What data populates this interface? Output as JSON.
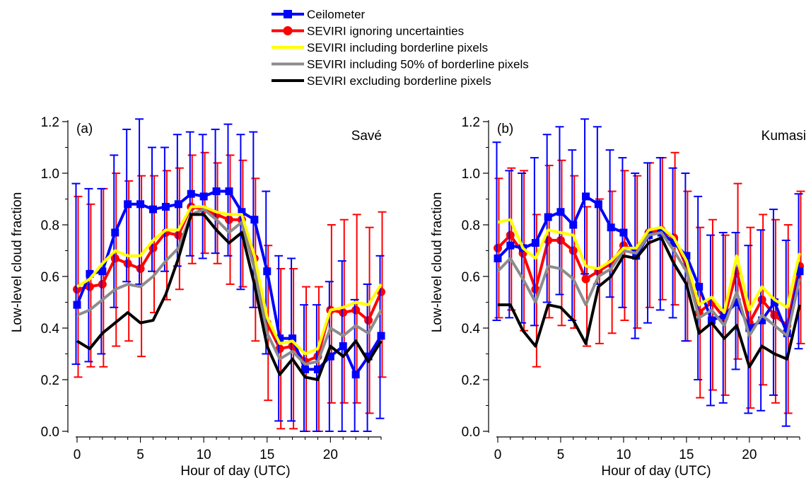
{
  "legend": {
    "placement": "top-center",
    "entries": [
      {
        "label": "Ceilometer",
        "color": "#0000ff",
        "marker": "square"
      },
      {
        "label": "SEVIRI ignoring uncertainties",
        "color": "#ff0000",
        "marker": "circle"
      },
      {
        "label": "SEVIRI including borderline pixels",
        "color": "#ffff00",
        "marker": "none"
      },
      {
        "label": "SEVIRI including 50% of borderline pixels",
        "color": "#8c8c8c",
        "marker": "none"
      },
      {
        "label": "SEVIRI excluding borderline pixels",
        "color": "#000000",
        "marker": "none"
      }
    ]
  },
  "chart_data": [
    {
      "type": "line",
      "panel_label": "(a)",
      "site": "Savé",
      "xlabel": "Hour of day (UTC)",
      "ylabel": "Low-level cloud fraction",
      "xlim": [
        -0.5,
        24
      ],
      "ylim": [
        -0.02,
        1.22
      ],
      "xticks": [
        "0",
        "5",
        "10",
        "15",
        "20"
      ],
      "yticks": [
        "0.0",
        "0.2",
        "0.4",
        "0.6",
        "0.8",
        "1.0",
        "1.2"
      ],
      "grid": false,
      "x": [
        0,
        1,
        2,
        3,
        4,
        5,
        6,
        7,
        8,
        9,
        10,
        11,
        12,
        13,
        14,
        15,
        16,
        17,
        18,
        19,
        20,
        21,
        22,
        23,
        24
      ],
      "series": [
        {
          "name": "Ceilometer",
          "values": [
            0.49,
            0.61,
            0.62,
            0.77,
            0.88,
            0.88,
            0.86,
            0.87,
            0.88,
            0.92,
            0.91,
            0.93,
            0.93,
            0.85,
            0.82,
            0.62,
            0.36,
            0.36,
            0.24,
            0.24,
            0.29,
            0.33,
            0.22,
            0.29,
            0.37
          ],
          "err_low": [
            0.26,
            0.27,
            0.3,
            0.48,
            0.58,
            0.57,
            0.62,
            0.62,
            0.64,
            0.68,
            0.67,
            0.69,
            0.68,
            0.55,
            0.48,
            0.3,
            0.04,
            0.04,
            0.0,
            0.0,
            0.0,
            0.0,
            0.0,
            0.0,
            0.05
          ],
          "err_high": [
            0.96,
            0.94,
            0.94,
            1.07,
            1.17,
            1.21,
            1.1,
            1.1,
            1.15,
            1.16,
            1.15,
            1.17,
            1.19,
            1.15,
            1.16,
            0.93,
            0.68,
            0.67,
            0.49,
            0.49,
            0.58,
            0.66,
            0.51,
            0.57,
            0.68
          ]
        },
        {
          "name": "SEVIRI ignoring uncertainties",
          "values": [
            0.55,
            0.56,
            0.57,
            0.67,
            0.65,
            0.63,
            0.71,
            0.77,
            0.76,
            0.87,
            0.86,
            0.84,
            0.82,
            0.82,
            0.67,
            0.42,
            0.32,
            0.33,
            0.27,
            0.29,
            0.47,
            0.46,
            0.47,
            0.43,
            0.54
          ],
          "err_low": [
            0.21,
            0.25,
            0.25,
            0.33,
            0.35,
            0.29,
            0.46,
            0.51,
            0.55,
            0.65,
            0.69,
            0.65,
            0.57,
            0.56,
            0.35,
            0.12,
            0.01,
            0.01,
            0.0,
            0.0,
            0.11,
            0.11,
            0.11,
            0.07,
            0.21
          ],
          "err_high": [
            0.91,
            0.88,
            0.94,
            1.0,
            0.97,
            0.99,
            0.99,
            1.01,
            1.02,
            1.07,
            1.08,
            1.04,
            1.07,
            1.05,
            0.98,
            0.72,
            0.63,
            0.63,
            0.56,
            0.56,
            0.8,
            0.82,
            0.84,
            0.79,
            0.85
          ]
        },
        {
          "name": "SEVIRI including borderline pixels",
          "values": [
            0.56,
            0.59,
            0.65,
            0.7,
            0.68,
            0.68,
            0.74,
            0.78,
            0.78,
            0.87,
            0.87,
            0.85,
            0.84,
            0.84,
            0.68,
            0.44,
            0.34,
            0.35,
            0.3,
            0.32,
            0.47,
            0.48,
            0.5,
            0.49,
            0.57
          ]
        },
        {
          "name": "SEVIRI including 50% of borderline pixels",
          "values": [
            0.45,
            0.47,
            0.51,
            0.55,
            0.57,
            0.56,
            0.6,
            0.66,
            0.71,
            0.84,
            0.86,
            0.82,
            0.77,
            0.81,
            0.63,
            0.38,
            0.28,
            0.31,
            0.26,
            0.27,
            0.4,
            0.37,
            0.41,
            0.38,
            0.47
          ]
        },
        {
          "name": "SEVIRI excluding borderline pixels",
          "values": [
            0.35,
            0.32,
            0.38,
            0.42,
            0.46,
            0.42,
            0.43,
            0.53,
            0.67,
            0.84,
            0.84,
            0.78,
            0.73,
            0.77,
            0.57,
            0.33,
            0.22,
            0.28,
            0.21,
            0.2,
            0.33,
            0.29,
            0.35,
            0.27,
            0.35
          ]
        }
      ]
    },
    {
      "type": "line",
      "panel_label": "(b)",
      "site": "Kumasi",
      "xlabel": "Hour of day (UTC)",
      "ylabel": "Low-level cloud fraction",
      "xlim": [
        -0.5,
        24
      ],
      "ylim": [
        -0.02,
        1.22
      ],
      "xticks": [
        "0",
        "5",
        "10",
        "15",
        "20"
      ],
      "yticks": [
        "0.0",
        "0.2",
        "0.4",
        "0.6",
        "0.8",
        "1.0",
        "1.2"
      ],
      "grid": false,
      "x": [
        0,
        1,
        2,
        3,
        4,
        5,
        6,
        7,
        8,
        9,
        10,
        11,
        12,
        13,
        14,
        15,
        16,
        17,
        18,
        19,
        20,
        21,
        22,
        23,
        24
      ],
      "series": [
        {
          "name": "Ceilometer",
          "values": [
            0.67,
            0.72,
            0.71,
            0.73,
            0.83,
            0.85,
            0.8,
            0.91,
            0.88,
            0.79,
            0.77,
            0.68,
            0.76,
            0.77,
            0.73,
            0.68,
            0.56,
            0.43,
            0.45,
            0.5,
            0.4,
            0.43,
            0.5,
            0.38,
            0.62
          ],
          "err_low": [
            0.43,
            0.44,
            0.42,
            0.41,
            0.5,
            0.53,
            0.43,
            0.61,
            0.57,
            0.52,
            0.48,
            0.36,
            0.42,
            0.47,
            0.44,
            0.35,
            0.2,
            0.1,
            0.11,
            0.24,
            0.07,
            0.08,
            0.14,
            0.02,
            0.32
          ],
          "err_high": [
            1.12,
            1.01,
            1.0,
            1.06,
            1.15,
            1.18,
            1.09,
            1.21,
            1.18,
            1.09,
            1.06,
            1.0,
            1.04,
            1.06,
            1.02,
            1.0,
            0.91,
            0.76,
            0.77,
            0.77,
            0.72,
            0.78,
            0.86,
            0.74,
            0.92
          ]
        },
        {
          "name": "SEVIRI ignoring uncertainties",
          "values": [
            0.71,
            0.76,
            0.69,
            0.55,
            0.74,
            0.74,
            0.7,
            0.59,
            0.62,
            0.65,
            0.72,
            0.7,
            0.77,
            0.78,
            0.75,
            0.64,
            0.46,
            0.5,
            0.44,
            0.62,
            0.42,
            0.51,
            0.45,
            0.41,
            0.64
          ],
          "err_low": [
            0.44,
            0.47,
            0.39,
            0.25,
            0.44,
            0.41,
            0.4,
            0.33,
            0.34,
            0.38,
            0.43,
            0.4,
            0.48,
            0.51,
            0.49,
            0.35,
            0.13,
            0.16,
            0.14,
            0.28,
            0.09,
            0.18,
            0.11,
            0.07,
            0.34
          ],
          "err_high": [
            0.98,
            1.02,
            1.01,
            0.84,
            1.03,
            1.05,
            0.99,
            0.87,
            0.9,
            0.93,
            1.01,
            0.99,
            1.04,
            1.06,
            1.08,
            0.93,
            0.79,
            0.82,
            0.76,
            0.96,
            0.79,
            0.84,
            0.82,
            0.8,
            0.93
          ]
        },
        {
          "name": "SEVIRI including borderline pixels",
          "values": [
            0.81,
            0.82,
            0.71,
            0.67,
            0.78,
            0.77,
            0.76,
            0.64,
            0.63,
            0.66,
            0.71,
            0.71,
            0.78,
            0.79,
            0.75,
            0.66,
            0.49,
            0.52,
            0.46,
            0.68,
            0.47,
            0.56,
            0.51,
            0.48,
            0.69
          ]
        },
        {
          "name": "SEVIRI including 50% of borderline pixels",
          "values": [
            0.62,
            0.67,
            0.59,
            0.5,
            0.64,
            0.63,
            0.59,
            0.49,
            0.6,
            0.63,
            0.7,
            0.69,
            0.76,
            0.77,
            0.7,
            0.62,
            0.44,
            0.47,
            0.41,
            0.54,
            0.37,
            0.45,
            0.41,
            0.37,
            0.59
          ]
        },
        {
          "name": "SEVIRI excluding borderline pixels",
          "values": [
            0.49,
            0.49,
            0.39,
            0.33,
            0.49,
            0.48,
            0.43,
            0.34,
            0.56,
            0.6,
            0.68,
            0.67,
            0.73,
            0.75,
            0.65,
            0.57,
            0.38,
            0.42,
            0.36,
            0.41,
            0.25,
            0.33,
            0.3,
            0.28,
            0.49
          ]
        }
      ]
    }
  ]
}
